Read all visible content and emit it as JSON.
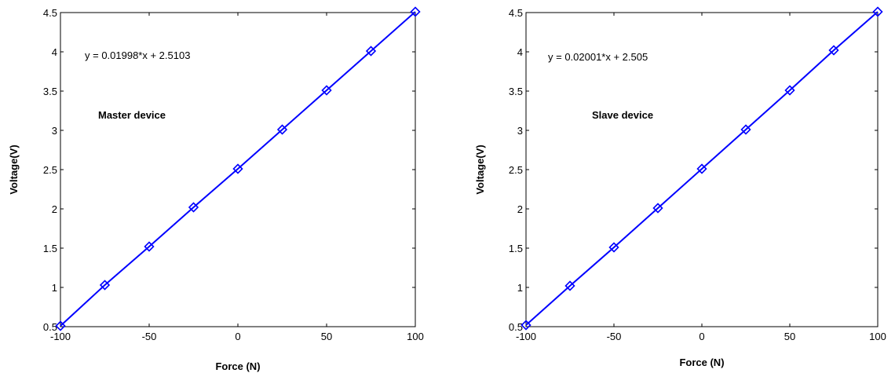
{
  "chart_data": [
    {
      "type": "line",
      "title": "",
      "xlabel": "Force (N)",
      "ylabel": "Voltage(V)",
      "xlim": [
        -100,
        100
      ],
      "ylim": [
        0.5,
        4.5
      ],
      "xticks": [
        "-100",
        "-50",
        "0",
        "50",
        "100"
      ],
      "yticks": [
        "0.5",
        "1",
        "1.5",
        "2",
        "2.5",
        "3",
        "3.5",
        "4",
        "4.5"
      ],
      "grid": false,
      "line_color": "#0000ff",
      "marker": "diamond",
      "annotations": {
        "equation": "y = 0.01998*x + 2.5103",
        "device": "Master device"
      },
      "x": [
        -100,
        -75,
        -50,
        -25,
        0,
        25,
        50,
        75,
        100
      ],
      "y": [
        0.51,
        1.03,
        1.52,
        2.02,
        2.51,
        3.01,
        3.51,
        4.01,
        4.51
      ]
    },
    {
      "type": "line",
      "title": "",
      "xlabel": "Force (N)",
      "ylabel": "Voltage(V)",
      "xlim": [
        -100,
        100
      ],
      "ylim": [
        0.5,
        4.5
      ],
      "xticks": [
        "-100",
        "-50",
        "0",
        "50",
        "100"
      ],
      "yticks": [
        "0.5",
        "1",
        "1.5",
        "2",
        "2.5",
        "3",
        "3.5",
        "4",
        "4.5"
      ],
      "grid": false,
      "line_color": "#0000ff",
      "marker": "diamond",
      "annotations": {
        "equation": "y = 0.02001*x + 2.505",
        "device": "Slave device"
      },
      "x": [
        -100,
        -75,
        -50,
        -25,
        0,
        25,
        50,
        75,
        100
      ],
      "y": [
        0.52,
        1.02,
        1.51,
        2.01,
        2.51,
        3.01,
        3.51,
        4.02,
        4.51
      ]
    }
  ]
}
